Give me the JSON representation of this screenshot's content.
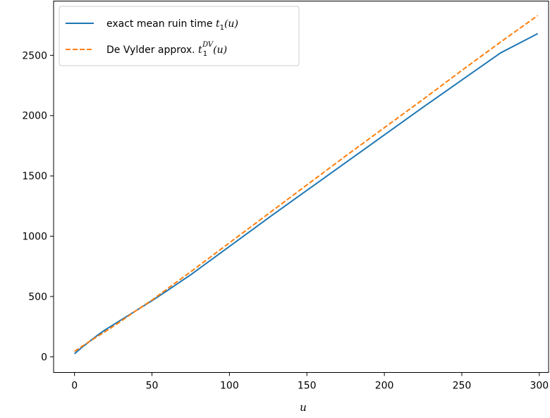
{
  "chart_data": {
    "type": "line",
    "title": "",
    "xlabel": "u",
    "ylabel": "",
    "xlim": [
      -13.5,
      306
    ],
    "ylim": [
      -130,
      2950
    ],
    "x_ticks": [
      0,
      50,
      100,
      150,
      200,
      250,
      300
    ],
    "y_ticks": [
      0,
      500,
      1000,
      1500,
      2000,
      2500
    ],
    "x_tick_labels": [
      "0",
      "50",
      "100",
      "150",
      "200",
      "250",
      "300"
    ],
    "y_tick_labels": [
      "0",
      "500",
      "1000",
      "1500",
      "2000",
      "2500"
    ],
    "grid": false,
    "legend_position": "upper-left",
    "series": [
      {
        "name": "exact mean ruin time t1(u)",
        "legend_text": "exact mean ruin time ",
        "legend_math": "t",
        "legend_sub": "1",
        "legend_sup": "",
        "legend_tail": "(u)",
        "color": "#1f77b4",
        "dash": "solid",
        "x": [
          0,
          5,
          10,
          15,
          20,
          25,
          30,
          40,
          50,
          60,
          75,
          100,
          125,
          150,
          175,
          200,
          225,
          250,
          275,
          299
        ],
        "y": [
          25,
          80,
          130,
          180,
          225,
          265,
          305,
          385,
          465,
          550,
          680,
          915,
          1150,
          1380,
          1610,
          1840,
          2070,
          2295,
          2520,
          2680
        ]
      },
      {
        "name": "De Vylder approx. t1DV(u)",
        "legend_text": "De Vylder approx. ",
        "legend_math": "t",
        "legend_sub": "1",
        "legend_sup": "DV",
        "legend_tail": "(u)",
        "color": "#ff7f0e",
        "dash": "dashed",
        "x": [
          0,
          10,
          20,
          30,
          40,
          50,
          60,
          75,
          100,
          125,
          150,
          175,
          200,
          225,
          250,
          275,
          299
        ],
        "y": [
          45,
          130,
          210,
          295,
          385,
          470,
          565,
          705,
          945,
          1185,
          1425,
          1665,
          1900,
          2135,
          2375,
          2610,
          2830
        ]
      }
    ]
  }
}
